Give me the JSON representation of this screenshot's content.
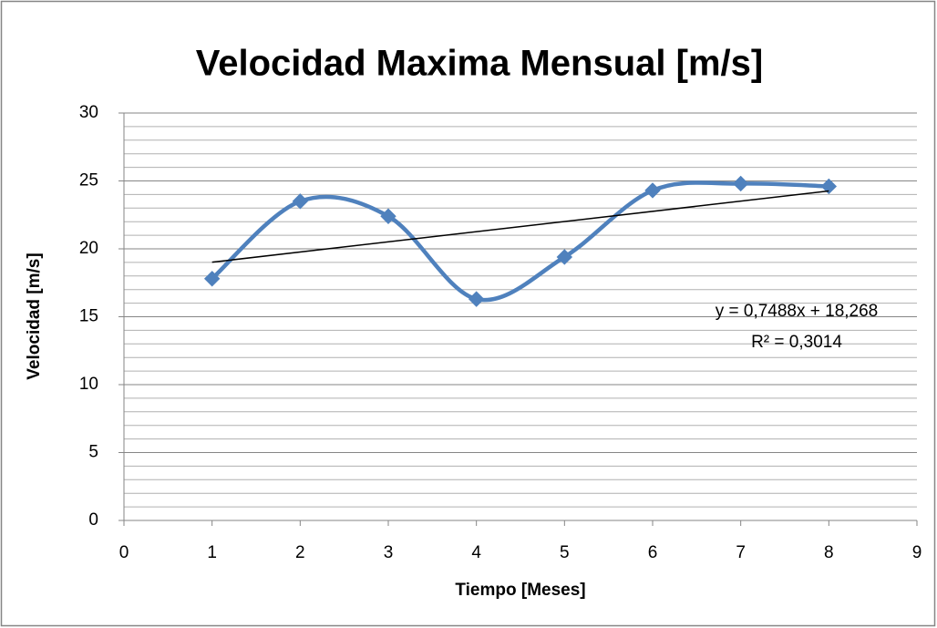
{
  "chart_data": {
    "type": "scatter",
    "title": "Velocidad Maxima Mensual [m/s]",
    "x_label": "Tiempo [Meses]",
    "y_label": "Velocidad [m/s]",
    "x": [
      1,
      2,
      3,
      4,
      5,
      6,
      7,
      8
    ],
    "series": [
      {
        "name": "Velocidad",
        "color": "#4f81bd",
        "values": [
          17.8,
          23.5,
          22.4,
          16.3,
          19.4,
          24.3,
          24.8,
          24.6
        ]
      }
    ],
    "smooth": true,
    "marker": "diamond",
    "xlim": [
      0,
      9
    ],
    "xticks": [
      0,
      1,
      2,
      3,
      4,
      5,
      6,
      7,
      8,
      9
    ],
    "ylim": [
      0,
      30
    ],
    "yticks": [
      0,
      5,
      10,
      15,
      20,
      25,
      30
    ],
    "y_minor_ticks": [
      1,
      2,
      3,
      4,
      6,
      7,
      8,
      9,
      11,
      12,
      13,
      14,
      16,
      17,
      18,
      19,
      21,
      22,
      23,
      24,
      26,
      27,
      28,
      29
    ],
    "grid": true,
    "trendline": {
      "slope": 0.7488,
      "intercept": 18.268,
      "equation": "y = 0,7488x + 18,268",
      "r2": 0.3014,
      "r2_label": "R² = 0,3014",
      "color": "#000000"
    }
  }
}
